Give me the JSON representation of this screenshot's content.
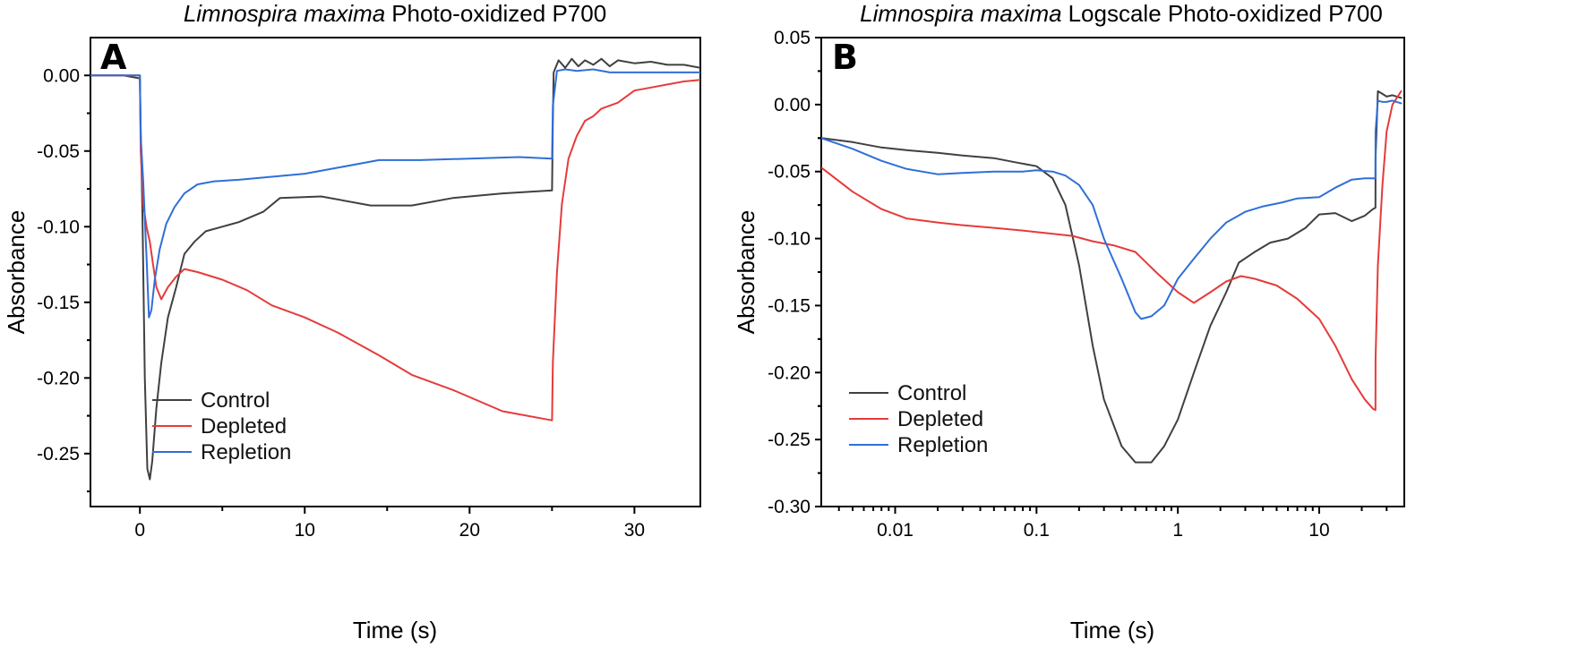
{
  "chart_data": [
    {
      "panel": "A",
      "type": "line",
      "title_italic": "Limnospira maxima",
      "title_rest": "Photo-oxidized P700",
      "xlabel": "Time (s)",
      "ylabel": "Absorbance",
      "xscale": "linear",
      "xlim": [
        -3,
        34
      ],
      "ylim": [
        -0.285,
        0.025
      ],
      "xticks": [
        0,
        10,
        20,
        30
      ],
      "xtick_labels": [
        "0",
        "10",
        "20",
        "30"
      ],
      "yticks": [
        0.0,
        -0.05,
        -0.1,
        -0.15,
        -0.2,
        -0.25
      ],
      "ytick_labels": [
        "0.00",
        "-0.05",
        "-0.10",
        "-0.15",
        "-0.20",
        "-0.25"
      ],
      "legend": {
        "placement": "bottom-center",
        "entries": [
          "Control",
          "Depleted",
          "Repletion"
        ]
      },
      "series": [
        {
          "name": "Control",
          "color": "#404040",
          "x": [
            -3,
            -1,
            0,
            0.05,
            0.15,
            0.3,
            0.45,
            0.6,
            0.75,
            1.0,
            1.3,
            1.7,
            2.2,
            2.7,
            3.3,
            4.0,
            5.0,
            6.0,
            7.5,
            8.5,
            11,
            14,
            16.5,
            19,
            22,
            25,
            25.05,
            25.1,
            25.4,
            25.8,
            26.2,
            26.6,
            27,
            27.5,
            28,
            28.5,
            29,
            30,
            31,
            32,
            33,
            34
          ],
          "y": [
            0.0,
            0.0,
            -0.002,
            -0.035,
            -0.09,
            -0.2,
            -0.26,
            -0.267,
            -0.255,
            -0.22,
            -0.19,
            -0.16,
            -0.14,
            -0.118,
            -0.11,
            -0.103,
            -0.1,
            -0.097,
            -0.09,
            -0.081,
            -0.08,
            -0.086,
            -0.086,
            -0.081,
            -0.078,
            -0.076,
            -0.03,
            0.002,
            0.01,
            0.005,
            0.011,
            0.006,
            0.01,
            0.007,
            0.011,
            0.006,
            0.01,
            0.008,
            0.009,
            0.007,
            0.007,
            0.005
          ]
        },
        {
          "name": "Depleted",
          "color": "#e63b3b",
          "x": [
            -3,
            -1,
            0,
            0.05,
            0.2,
            0.4,
            0.6,
            0.8,
            1.0,
            1.3,
            1.7,
            2.2,
            2.7,
            3.5,
            5.0,
            6.5,
            8.0,
            10.0,
            12.0,
            14.5,
            16.5,
            19,
            22,
            25,
            25.05,
            25.3,
            25.6,
            26,
            26.5,
            27,
            27.5,
            28,
            29,
            30,
            31,
            32,
            33,
            34
          ],
          "y": [
            0.0,
            0.0,
            0.0,
            -0.05,
            -0.085,
            -0.1,
            -0.11,
            -0.125,
            -0.14,
            -0.148,
            -0.14,
            -0.133,
            -0.128,
            -0.13,
            -0.135,
            -0.142,
            -0.152,
            -0.16,
            -0.17,
            -0.185,
            -0.198,
            -0.208,
            -0.222,
            -0.228,
            -0.19,
            -0.13,
            -0.085,
            -0.055,
            -0.04,
            -0.03,
            -0.027,
            -0.022,
            -0.018,
            -0.01,
            -0.008,
            -0.006,
            -0.004,
            -0.003
          ]
        },
        {
          "name": "Repletion",
          "color": "#2f6fd8",
          "x": [
            -3,
            -1,
            0,
            0.05,
            0.2,
            0.4,
            0.55,
            0.7,
            0.9,
            1.2,
            1.6,
            2.1,
            2.7,
            3.5,
            4.5,
            6.0,
            8.0,
            10.0,
            12.0,
            14.5,
            17,
            20,
            23,
            25,
            25.05,
            25.3,
            25.8,
            26.5,
            27.5,
            28.5,
            30,
            32,
            34
          ],
          "y": [
            0.0,
            0.0,
            0.0,
            -0.04,
            -0.07,
            -0.12,
            -0.16,
            -0.155,
            -0.135,
            -0.115,
            -0.098,
            -0.087,
            -0.078,
            -0.072,
            -0.07,
            -0.069,
            -0.067,
            -0.065,
            -0.061,
            -0.056,
            -0.056,
            -0.055,
            -0.054,
            -0.055,
            -0.02,
            0.003,
            0.004,
            0.003,
            0.004,
            0.002,
            0.002,
            0.002,
            0.002
          ]
        }
      ]
    },
    {
      "panel": "B",
      "type": "line",
      "title_italic": "Limnospira maxima",
      "title_rest": "Logscale Photo-oxidized P700",
      "xlabel": "Time (s)",
      "ylabel": "Absorbance",
      "xscale": "log",
      "xlim": [
        0.003,
        40
      ],
      "ylim": [
        -0.3,
        0.05
      ],
      "xticks": [
        0.01,
        0.1,
        1,
        10
      ],
      "xtick_labels": [
        "0.01",
        "0.1",
        "1",
        "10"
      ],
      "yticks": [
        0.05,
        0.0,
        -0.05,
        -0.1,
        -0.15,
        -0.2,
        -0.25,
        -0.3
      ],
      "ytick_labels": [
        "0.05",
        "0.00",
        "-0.05",
        "-0.10",
        "-0.15",
        "-0.20",
        "-0.25",
        "-0.30"
      ],
      "legend": {
        "placement": "bottom-left",
        "entries": [
          "Control",
          "Depleted",
          "Repletion"
        ]
      },
      "series": [
        {
          "name": "Control",
          "color": "#404040",
          "x": [
            0.003,
            0.005,
            0.008,
            0.012,
            0.02,
            0.03,
            0.05,
            0.07,
            0.1,
            0.13,
            0.16,
            0.2,
            0.25,
            0.3,
            0.4,
            0.5,
            0.65,
            0.8,
            1.0,
            1.3,
            1.7,
            2.2,
            2.7,
            3.5,
            4.5,
            6,
            8,
            10,
            13,
            17,
            21,
            24,
            25,
            25.05,
            26,
            28,
            30,
            33,
            38
          ],
          "y": [
            -0.025,
            -0.028,
            -0.032,
            -0.034,
            -0.036,
            -0.038,
            -0.04,
            -0.043,
            -0.046,
            -0.055,
            -0.075,
            -0.12,
            -0.18,
            -0.22,
            -0.255,
            -0.267,
            -0.267,
            -0.255,
            -0.235,
            -0.2,
            -0.165,
            -0.14,
            -0.118,
            -0.11,
            -0.103,
            -0.1,
            -0.092,
            -0.082,
            -0.081,
            -0.087,
            -0.083,
            -0.078,
            -0.077,
            -0.04,
            0.01,
            0.008,
            0.006,
            0.007,
            0.005
          ]
        },
        {
          "name": "Depleted",
          "color": "#e63b3b",
          "x": [
            0.003,
            0.005,
            0.008,
            0.012,
            0.02,
            0.03,
            0.05,
            0.08,
            0.12,
            0.18,
            0.25,
            0.35,
            0.5,
            0.7,
            1.0,
            1.3,
            1.7,
            2.2,
            2.8,
            3.5,
            5,
            7,
            10,
            13,
            17,
            21,
            24,
            25,
            25.05,
            26,
            28,
            30,
            33,
            38
          ],
          "y": [
            -0.047,
            -0.065,
            -0.078,
            -0.085,
            -0.088,
            -0.09,
            -0.092,
            -0.094,
            -0.096,
            -0.098,
            -0.102,
            -0.105,
            -0.11,
            -0.125,
            -0.14,
            -0.148,
            -0.14,
            -0.132,
            -0.128,
            -0.13,
            -0.135,
            -0.145,
            -0.16,
            -0.18,
            -0.205,
            -0.22,
            -0.227,
            -0.228,
            -0.19,
            -0.12,
            -0.06,
            -0.02,
            0.0,
            0.01
          ]
        },
        {
          "name": "Repletion",
          "color": "#2f6fd8",
          "x": [
            0.003,
            0.005,
            0.008,
            0.012,
            0.02,
            0.03,
            0.05,
            0.08,
            0.1,
            0.13,
            0.16,
            0.2,
            0.25,
            0.3,
            0.4,
            0.5,
            0.55,
            0.65,
            0.8,
            1.0,
            1.3,
            1.7,
            2.2,
            3,
            4,
            5.5,
            7,
            10,
            13,
            17,
            21,
            24,
            25,
            25.05,
            26,
            28,
            30,
            33,
            38
          ],
          "y": [
            -0.025,
            -0.033,
            -0.042,
            -0.048,
            -0.052,
            -0.051,
            -0.05,
            -0.05,
            -0.049,
            -0.05,
            -0.053,
            -0.06,
            -0.075,
            -0.1,
            -0.13,
            -0.155,
            -0.16,
            -0.158,
            -0.15,
            -0.13,
            -0.115,
            -0.1,
            -0.088,
            -0.08,
            -0.076,
            -0.073,
            -0.07,
            -0.069,
            -0.062,
            -0.056,
            -0.055,
            -0.055,
            -0.055,
            -0.02,
            0.003,
            0.002,
            0.002,
            0.003,
            0.001
          ]
        }
      ]
    }
  ]
}
